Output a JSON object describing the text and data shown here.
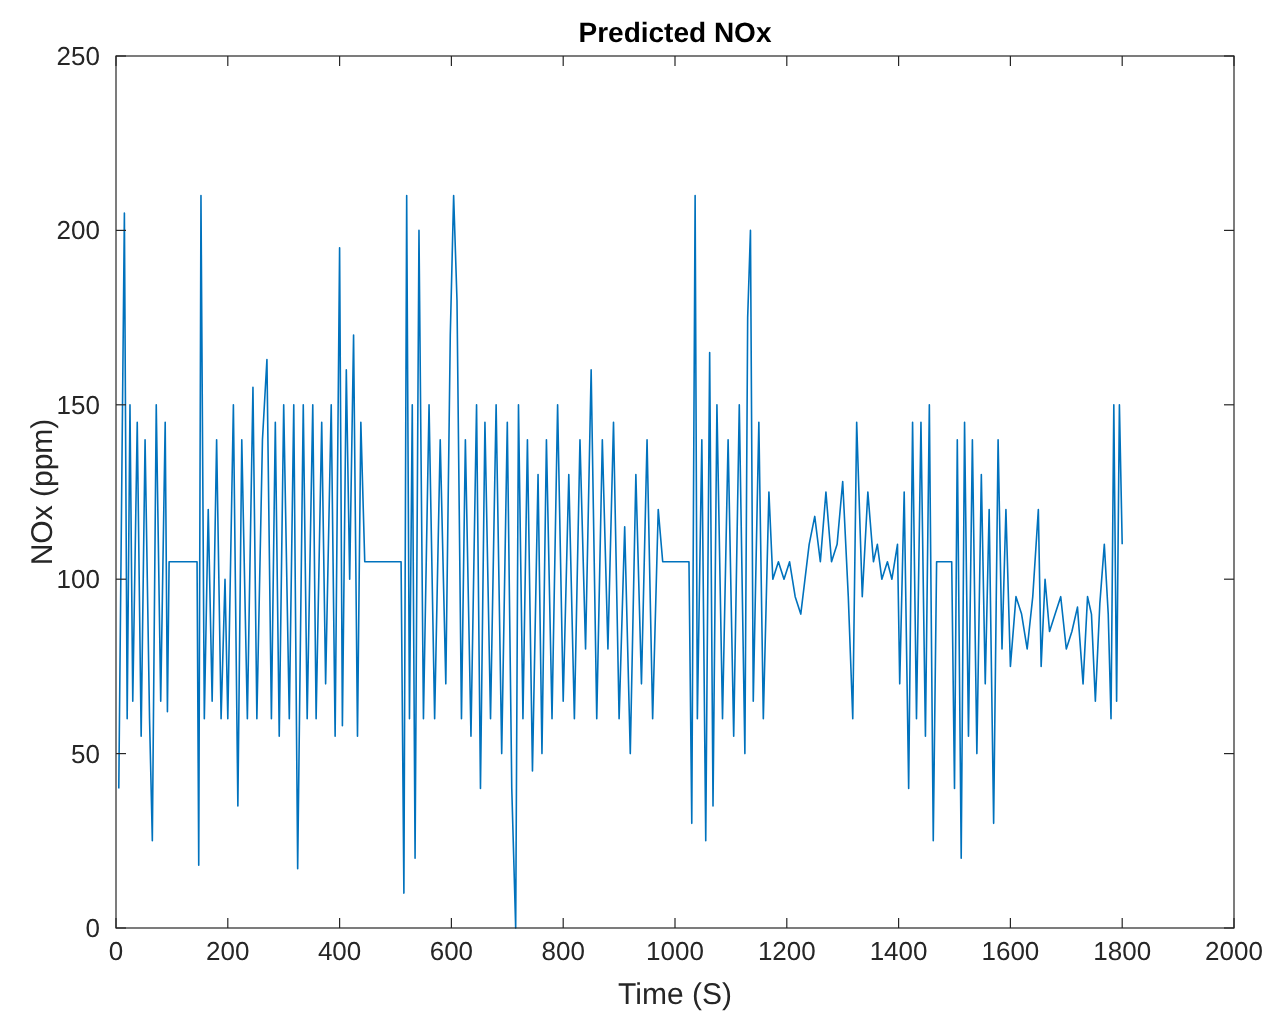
{
  "chart_data": {
    "type": "line",
    "title": "Predicted NOx",
    "xlabel": "Time (S)",
    "ylabel": "NOx (ppm)",
    "xlim": [
      0,
      2000
    ],
    "ylim": [
      0,
      250
    ],
    "xticks": [
      0,
      200,
      400,
      600,
      800,
      1000,
      1200,
      1400,
      1600,
      1800,
      2000
    ],
    "yticks": [
      0,
      50,
      100,
      150,
      200,
      250
    ],
    "grid": false,
    "marker": "none",
    "line_style": "solid",
    "series": [
      {
        "color": "#0072bd",
        "x": [
          5,
          15,
          20,
          25,
          30,
          38,
          45,
          52,
          60,
          65,
          72,
          80,
          88,
          92,
          95,
          145,
          148,
          152,
          158,
          165,
          172,
          180,
          188,
          195,
          200,
          210,
          218,
          225,
          235,
          245,
          252,
          262,
          270,
          278,
          285,
          292,
          300,
          310,
          318,
          325,
          335,
          342,
          352,
          358,
          368,
          375,
          385,
          392,
          400,
          405,
          412,
          418,
          425,
          432,
          438,
          445,
          505,
          510,
          515,
          520,
          525,
          530,
          535,
          542,
          550,
          560,
          570,
          580,
          590,
          598,
          604,
          610,
          618,
          625,
          635,
          645,
          652,
          660,
          670,
          680,
          690,
          700,
          708,
          715,
          720,
          728,
          736,
          745,
          755,
          762,
          770,
          780,
          790,
          800,
          810,
          820,
          830,
          840,
          850,
          860,
          870,
          880,
          890,
          900,
          910,
          920,
          930,
          940,
          950,
          960,
          970,
          978,
          1025,
          1030,
          1036,
          1040,
          1048,
          1055,
          1062,
          1068,
          1075,
          1085,
          1095,
          1105,
          1115,
          1125,
          1130,
          1135,
          1140,
          1150,
          1158,
          1168,
          1175,
          1185,
          1195,
          1205,
          1215,
          1225,
          1240,
          1250,
          1260,
          1270,
          1280,
          1290,
          1300,
          1310,
          1318,
          1325,
          1335,
          1345,
          1355,
          1362,
          1370,
          1380,
          1388,
          1398,
          1402,
          1410,
          1418,
          1425,
          1432,
          1440,
          1448,
          1455,
          1462,
          1468,
          1495,
          1500,
          1505,
          1512,
          1518,
          1525,
          1532,
          1540,
          1548,
          1555,
          1562,
          1570,
          1578,
          1585,
          1592,
          1600,
          1610,
          1620,
          1630,
          1640,
          1650,
          1655,
          1662,
          1670,
          1680,
          1690,
          1700,
          1710,
          1720,
          1730,
          1738,
          1745,
          1752,
          1760,
          1768,
          1775,
          1780,
          1785,
          1790,
          1795,
          1800
        ],
        "values": [
          40,
          205,
          60,
          150,
          65,
          145,
          55,
          140,
          60,
          25,
          150,
          65,
          145,
          62,
          105,
          105,
          18,
          210,
          60,
          120,
          65,
          140,
          60,
          100,
          60,
          150,
          35,
          140,
          60,
          155,
          60,
          140,
          163,
          60,
          145,
          55,
          150,
          60,
          150,
          17,
          150,
          60,
          150,
          60,
          145,
          70,
          150,
          55,
          195,
          58,
          160,
          100,
          170,
          55,
          145,
          105,
          105,
          105,
          10,
          210,
          60,
          150,
          20,
          200,
          60,
          150,
          60,
          140,
          70,
          170,
          210,
          180,
          60,
          140,
          55,
          150,
          40,
          145,
          60,
          150,
          50,
          145,
          40,
          0,
          150,
          60,
          140,
          45,
          130,
          50,
          140,
          60,
          150,
          65,
          130,
          60,
          140,
          80,
          160,
          60,
          140,
          80,
          145,
          60,
          115,
          50,
          130,
          70,
          140,
          60,
          120,
          105,
          105,
          30,
          210,
          60,
          140,
          25,
          165,
          35,
          150,
          60,
          140,
          55,
          150,
          50,
          175,
          200,
          65,
          145,
          60,
          125,
          100,
          105,
          100,
          105,
          95,
          90,
          110,
          118,
          105,
          125,
          105,
          110,
          128,
          95,
          60,
          145,
          95,
          125,
          105,
          110,
          100,
          105,
          100,
          110,
          70,
          125,
          40,
          145,
          60,
          145,
          55,
          150,
          25,
          105,
          105,
          40,
          140,
          20,
          145,
          55,
          140,
          50,
          130,
          70,
          120,
          30,
          140,
          80,
          120,
          75,
          95,
          90,
          80,
          95,
          120,
          75,
          100,
          85,
          90,
          95,
          80,
          85,
          92,
          70,
          95,
          90,
          65,
          93,
          110,
          90,
          60,
          150,
          65,
          150,
          110
        ]
      }
    ]
  }
}
